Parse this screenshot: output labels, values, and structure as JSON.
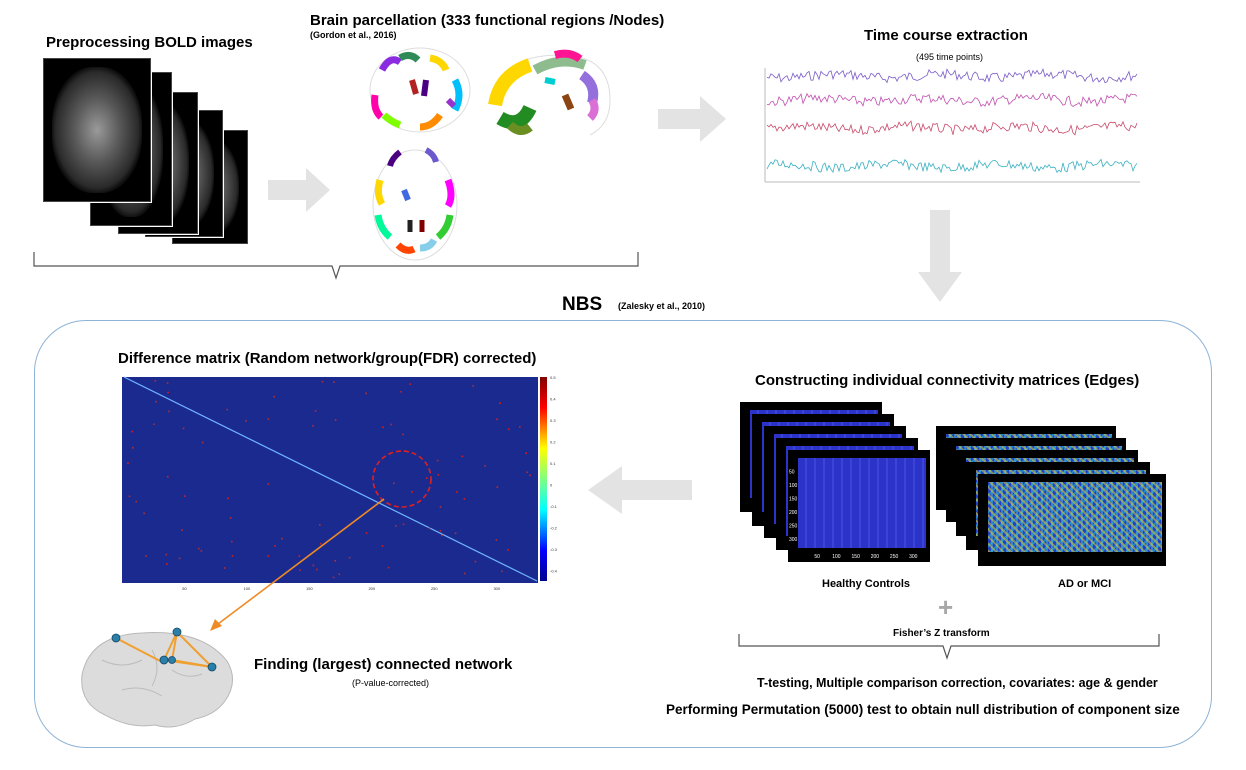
{
  "top": {
    "preprocessing_title": "Preprocessing BOLD images",
    "parcellation_title": "Brain parcellation (333 functional regions /Nodes)",
    "parcellation_citation": "(Gordon et al., 2016)",
    "timecourse_title": "Time course extraction",
    "timecourse_subtitle": "(495 time points)"
  },
  "nbs": {
    "title": "NBS",
    "citation": "(Zalesky et al., 2010)"
  },
  "difference_matrix": {
    "title": "Difference matrix (Random network/group(FDR) corrected)",
    "x_ticks": [
      "50",
      "100",
      "150",
      "200",
      "250",
      "300"
    ],
    "colorbar_ticks": [
      "0.5",
      "0.4",
      "0.3",
      "0.2",
      "0.1",
      "0",
      "-0.1",
      "-0.2",
      "-0.3",
      "-0.4"
    ]
  },
  "connectivity": {
    "title": "Constructing individual connectivity matrices (Edges)",
    "healthy_label": "Healthy Controls",
    "ad_label": "AD or MCI",
    "plus": "+",
    "fisher_label": "Fisher’s Z transform",
    "y_ticks": [
      "50",
      "100",
      "150",
      "200",
      "250",
      "300"
    ],
    "x_ticks": [
      "50",
      "100",
      "150",
      "200",
      "250",
      "300"
    ]
  },
  "bottom": {
    "network_title": "Finding (largest) connected network",
    "network_subtitle": "(P-value-corrected)",
    "ttest_text": "T-testing, Multiple comparison correction, covariates: age & gender",
    "permutation_text": "Performing Permutation (5000) test to obtain null distribution of component size"
  },
  "colors": {
    "arrow": "#e3e3e3",
    "panel_border": "#8fb3d6",
    "matrix_bg": "#1b2a8f",
    "diagonal": "#6fb4ff",
    "circle": "#e02020",
    "connector": "#f08a24",
    "ts_colors": [
      "#7b5bc7",
      "#c04fb0",
      "#c84a6a",
      "#3ab0c0"
    ]
  }
}
